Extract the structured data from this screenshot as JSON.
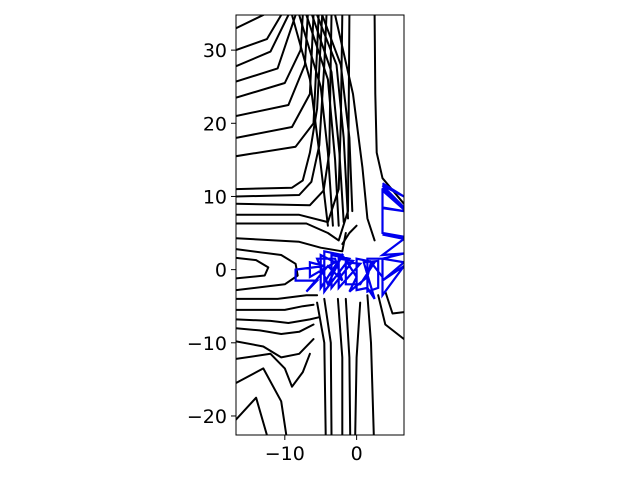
{
  "chart_data": {
    "type": "contour",
    "title": "",
    "xlabel": "",
    "ylabel": "",
    "xlim": [
      -16.8,
      6.6
    ],
    "ylim": [
      -22.6,
      34.8
    ],
    "x_ticks": [
      -10,
      0
    ],
    "y_ticks": [
      -20,
      -10,
      0,
      10,
      20,
      30
    ],
    "x_tick_labels": [
      "−10",
      "0"
    ],
    "y_tick_labels": [
      "−20",
      "−10",
      "0",
      "10",
      "20",
      "30"
    ],
    "grid": false,
    "contour_color": "#000000",
    "path_color": "#0000ee",
    "contour_lines": [
      [
        [
          -7.0,
          34.8
        ],
        [
          -4.0,
          26.0
        ],
        [
          -3.0,
          15.0
        ],
        [
          -2.5,
          6.0
        ]
      ],
      [
        [
          -6.2,
          34.8
        ],
        [
          -3.5,
          27.0
        ],
        [
          -2.4,
          16.0
        ],
        [
          -1.8,
          6.5
        ]
      ],
      [
        [
          -5.5,
          34.8
        ],
        [
          -2.8,
          28.0
        ],
        [
          -1.8,
          18.0
        ],
        [
          -1.2,
          7.0
        ]
      ],
      [
        [
          -8.0,
          34.8
        ],
        [
          -5.0,
          25.0
        ],
        [
          -4.0,
          16.0
        ],
        [
          -3.3,
          6.0
        ]
      ],
      [
        [
          -9.0,
          34.8
        ],
        [
          -6.5,
          26.0
        ],
        [
          -5.2,
          16.0
        ],
        [
          -4.0,
          6.0
        ]
      ],
      [
        [
          -4.8,
          34.8
        ],
        [
          -2.2,
          28.0
        ],
        [
          -1.0,
          18.0
        ],
        [
          -0.6,
          8.0
        ]
      ],
      [
        [
          -3.0,
          34.8
        ],
        [
          -0.5,
          24.0
        ],
        [
          0.8,
          14.0
        ],
        [
          1.5,
          7.0
        ],
        [
          2.5,
          4.0
        ]
      ],
      [
        [
          2.5,
          34.8
        ],
        [
          2.6,
          24.0
        ],
        [
          2.8,
          16.0
        ],
        [
          3.6,
          12.5
        ],
        [
          6.6,
          9.0
        ]
      ],
      [
        [
          -16.8,
          33.0
        ],
        [
          -13.0,
          34.8
        ]
      ],
      [
        [
          -16.8,
          30.0
        ],
        [
          -12.5,
          31.5
        ],
        [
          -10.5,
          34.8
        ]
      ],
      [
        [
          -16.8,
          27.8
        ],
        [
          -12.0,
          29.8
        ],
        [
          -9.5,
          34.8
        ]
      ],
      [
        [
          -16.8,
          25.7
        ],
        [
          -11.0,
          27.5
        ],
        [
          -8.5,
          34.8
        ]
      ],
      [
        [
          -16.8,
          23.5
        ],
        [
          -10.0,
          25.5
        ],
        [
          -7.8,
          30.0
        ],
        [
          -7.5,
          34.8
        ]
      ],
      [
        [
          -16.8,
          21.0
        ],
        [
          -9.5,
          22.5
        ],
        [
          -7.2,
          28.0
        ],
        [
          -6.8,
          34.8
        ]
      ],
      [
        [
          -16.8,
          18.0
        ],
        [
          -9.0,
          19.5
        ],
        [
          -6.5,
          24.0
        ],
        [
          -6.0,
          34.8
        ]
      ],
      [
        [
          -16.8,
          15.5
        ],
        [
          -8.5,
          16.8
        ],
        [
          -6.0,
          20.0
        ],
        [
          -5.5,
          30.0
        ],
        [
          -5.3,
          34.8
        ]
      ],
      [
        [
          -16.8,
          11.0
        ],
        [
          -9.0,
          11.2
        ],
        [
          -7.5,
          12.2
        ],
        [
          -6.5,
          16.0
        ],
        [
          -5.5,
          22.0
        ],
        [
          -4.8,
          34.8
        ]
      ],
      [
        [
          -16.8,
          10.0
        ],
        [
          -8.0,
          10.2
        ],
        [
          -6.3,
          12.0
        ],
        [
          -5.2,
          17.0
        ],
        [
          -4.5,
          28.0
        ],
        [
          -4.2,
          34.8
        ]
      ],
      [
        [
          -16.8,
          9.0
        ],
        [
          -6.5,
          8.8
        ],
        [
          -4.6,
          10.8
        ],
        [
          -3.8,
          16.0
        ],
        [
          -3.5,
          34.8
        ]
      ],
      [
        [
          -16.8,
          7.5
        ],
        [
          -8.0,
          7.5
        ],
        [
          -4.0,
          6.5
        ],
        [
          -2.5,
          11.0
        ],
        [
          -2.2,
          20.0
        ],
        [
          -2.0,
          34.8
        ]
      ],
      [
        [
          -16.8,
          6.3
        ],
        [
          -7.0,
          6.3
        ],
        [
          -4.0,
          5.0
        ],
        [
          -2.5,
          4.0
        ],
        [
          -1.2,
          8.0
        ],
        [
          -1.0,
          34.8
        ]
      ],
      [
        [
          -16.8,
          4.3
        ],
        [
          -8.0,
          3.8
        ],
        [
          -5.0,
          3.0
        ],
        [
          -2.0,
          2.5
        ],
        [
          -1.5,
          5.0
        ]
      ],
      [
        [
          -16.8,
          2.8
        ],
        [
          -10.5,
          2.0
        ],
        [
          -8.5,
          0.8
        ],
        [
          -8.2,
          -0.8
        ],
        [
          -10.0,
          -2.0
        ],
        [
          -16.8,
          -2.8
        ]
      ],
      [
        [
          -16.8,
          1.6
        ],
        [
          -14.0,
          1.3
        ],
        [
          -12.3,
          0.3
        ],
        [
          -12.8,
          -0.8
        ],
        [
          -16.8,
          -1.2
        ]
      ],
      [
        [
          -16.8,
          -4.0
        ],
        [
          -11.0,
          -4.0
        ],
        [
          -7.0,
          -3.5
        ],
        [
          -5.5,
          -3.5
        ]
      ],
      [
        [
          -16.8,
          -5.5
        ],
        [
          -10.0,
          -5.5
        ],
        [
          -7.5,
          -5.0
        ],
        [
          -6.0,
          -4.8
        ]
      ],
      [
        [
          -16.8,
          -6.8
        ],
        [
          -12.0,
          -7.0
        ],
        [
          -9.5,
          -7.3
        ],
        [
          -6.5,
          -6.8
        ],
        [
          -5.2,
          -6.5
        ]
      ],
      [
        [
          -16.8,
          -8.0
        ],
        [
          -13.5,
          -8.3
        ],
        [
          -10.5,
          -8.8
        ],
        [
          -8.0,
          -8.5
        ],
        [
          -6.0,
          -7.5
        ]
      ],
      [
        [
          -16.8,
          -9.8
        ],
        [
          -13.0,
          -10.5
        ],
        [
          -10.5,
          -12.0
        ],
        [
          -8.0,
          -11.5
        ],
        [
          -6.0,
          -9.5
        ]
      ],
      [
        [
          -16.8,
          -12.2
        ],
        [
          -12.0,
          -11.5
        ],
        [
          -10.0,
          -13.5
        ],
        [
          -9.0,
          -16.0
        ],
        [
          -7.5,
          -14.0
        ],
        [
          -6.5,
          -11.5
        ]
      ],
      [
        [
          -16.8,
          -15.5
        ],
        [
          -13.0,
          -13.5
        ],
        [
          -10.5,
          -18.0
        ],
        [
          -9.8,
          -22.6
        ]
      ],
      [
        [
          -16.8,
          -20.5
        ],
        [
          -14.0,
          -17.5
        ],
        [
          -12.5,
          -22.6
        ]
      ],
      [
        [
          -5.5,
          -4.5
        ],
        [
          -4.5,
          -10.0
        ],
        [
          -4.3,
          -22.6
        ]
      ],
      [
        [
          -4.5,
          -4.0
        ],
        [
          -3.6,
          -10.0
        ],
        [
          -3.5,
          -22.6
        ]
      ],
      [
        [
          -2.6,
          -4.0
        ],
        [
          -2.0,
          -12.0
        ],
        [
          -2.0,
          -22.6
        ]
      ],
      [
        [
          -1.5,
          -4.0
        ],
        [
          -1.0,
          -12.0
        ],
        [
          -0.9,
          -22.6
        ]
      ],
      [
        [
          0.5,
          -4.5
        ],
        [
          0.0,
          -12.0
        ],
        [
          -0.2,
          -22.6
        ]
      ],
      [
        [
          1.5,
          -3.5
        ],
        [
          2.0,
          -10.0
        ],
        [
          2.4,
          -22.6
        ]
      ],
      [
        [
          3.0,
          -3.5
        ],
        [
          4.0,
          -7.5
        ],
        [
          6.6,
          -9.5
        ]
      ],
      [
        [
          4.0,
          -3.0
        ],
        [
          5.0,
          -6.0
        ],
        [
          6.6,
          -5.8
        ]
      ],
      [
        [
          -2.0,
          3.5
        ],
        [
          -1.0,
          5.0
        ],
        [
          0.0,
          6.0
        ]
      ]
    ],
    "path": [
      [
        3.6,
        11.8
      ],
      [
        6.6,
        10.0
      ],
      [
        3.6,
        11.5
      ],
      [
        6.6,
        8.5
      ],
      [
        3.6,
        11.2
      ],
      [
        6.6,
        8.2
      ],
      [
        3.6,
        10.8
      ],
      [
        3.6,
        8.5
      ],
      [
        6.6,
        8.0
      ],
      [
        3.6,
        8.4
      ],
      [
        3.6,
        5.0
      ],
      [
        6.6,
        4.5
      ],
      [
        3.6,
        4.8
      ],
      [
        6.6,
        4.2
      ],
      [
        3.6,
        2.0
      ],
      [
        6.6,
        2.2
      ],
      [
        3.6,
        1.5
      ],
      [
        6.6,
        1.0
      ],
      [
        3.6,
        -1.5
      ],
      [
        6.6,
        0.5
      ],
      [
        3.6,
        -3.5
      ],
      [
        3.6,
        1.5
      ],
      [
        1.5,
        1.5
      ],
      [
        1.5,
        -3.0
      ],
      [
        3.0,
        -2.5
      ],
      [
        3.0,
        1.2
      ],
      [
        1.0,
        1.0
      ],
      [
        2.5,
        -4.0
      ],
      [
        1.5,
        -2.5
      ],
      [
        0.0,
        -2.8
      ],
      [
        0.0,
        1.5
      ],
      [
        2.5,
        1.0
      ],
      [
        0.5,
        -2.0
      ],
      [
        -1.5,
        -2.0
      ],
      [
        -1.5,
        1.0
      ],
      [
        0.5,
        0.8
      ],
      [
        -2.5,
        -2.5
      ],
      [
        -2.5,
        1.5
      ],
      [
        -0.5,
        1.2
      ],
      [
        -3.5,
        -2.5
      ],
      [
        -3.5,
        2.0
      ],
      [
        -1.0,
        1.5
      ],
      [
        -4.5,
        -3.0
      ],
      [
        -4.5,
        2.5
      ],
      [
        -2.0,
        2.0
      ],
      [
        -5.0,
        -2.5
      ],
      [
        -5.0,
        2.0
      ],
      [
        -3.0,
        1.0
      ],
      [
        -6.5,
        -1.0
      ],
      [
        -6.5,
        1.0
      ],
      [
        -4.5,
        0.5
      ],
      [
        -8.5,
        0.0
      ],
      [
        -8.5,
        -1.5
      ],
      [
        -5.5,
        -1.5
      ],
      [
        -7.0,
        -3.0
      ],
      [
        -4.0,
        0.5
      ],
      [
        -2.0,
        -1.5
      ],
      [
        -3.0,
        1.5
      ],
      [
        -5.5,
        1.5
      ],
      [
        -4.0,
        -2.0
      ],
      [
        -2.0,
        2.0
      ],
      [
        0.0,
        -1.0
      ],
      [
        -1.0,
        -3.0
      ],
      [
        1.5,
        -1.0
      ],
      [
        2.0,
        1.0
      ],
      [
        3.6,
        -1.0
      ]
    ]
  }
}
